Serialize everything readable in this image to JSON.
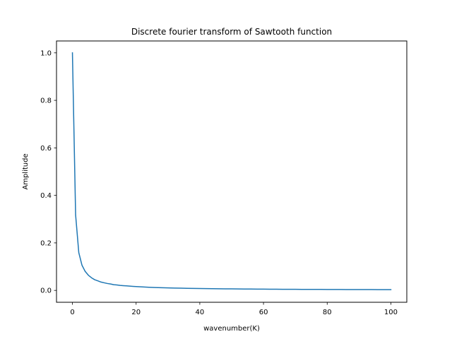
{
  "chart_data": {
    "type": "line",
    "title": "Discrete fourier transform of Sawtooth function",
    "xlabel": "wavenumber(K)",
    "ylabel": "Amplitude",
    "xlim": [
      -5,
      105
    ],
    "ylim": [
      -0.05,
      1.05
    ],
    "grid": false,
    "legend": "none",
    "line_color": "#1f77b4",
    "x_ticks": [
      0,
      20,
      40,
      60,
      80,
      100
    ],
    "x_tick_labels": [
      "0",
      "20",
      "40",
      "60",
      "80",
      "100"
    ],
    "y_ticks": [
      0.0,
      0.2,
      0.4,
      0.6,
      0.8,
      1.0
    ],
    "y_tick_labels": [
      "0.0",
      "0.2",
      "0.4",
      "0.6",
      "0.8",
      "1.0"
    ],
    "series": [
      {
        "x": [
          0,
          1,
          2,
          3,
          4,
          5,
          6,
          7,
          8,
          9,
          10,
          11,
          12,
          13,
          14,
          15,
          16,
          17,
          18,
          19,
          20,
          22,
          24,
          26,
          28,
          30,
          32,
          34,
          36,
          38,
          40,
          42,
          44,
          46,
          48,
          50,
          52,
          54,
          56,
          58,
          60,
          62,
          64,
          66,
          68,
          70,
          72,
          74,
          76,
          78,
          80,
          82,
          84,
          86,
          88,
          90,
          92,
          94,
          96,
          98,
          100
        ],
        "values": [
          1.0,
          0.318,
          0.159,
          0.106,
          0.08,
          0.064,
          0.053,
          0.045,
          0.04,
          0.035,
          0.032,
          0.029,
          0.027,
          0.024,
          0.023,
          0.021,
          0.02,
          0.019,
          0.018,
          0.017,
          0.016,
          0.0145,
          0.0133,
          0.0122,
          0.0114,
          0.0106,
          0.0099,
          0.0094,
          0.0088,
          0.0084,
          0.008,
          0.0076,
          0.0072,
          0.0069,
          0.0066,
          0.0064,
          0.0061,
          0.0059,
          0.0057,
          0.0055,
          0.0053,
          0.0051,
          0.005,
          0.0048,
          0.0047,
          0.0045,
          0.0044,
          0.0043,
          0.0042,
          0.0041,
          0.004,
          0.0039,
          0.0038,
          0.0037,
          0.0036,
          0.0035,
          0.0035,
          0.0034,
          0.0033,
          0.0032,
          0.0032
        ]
      }
    ]
  }
}
